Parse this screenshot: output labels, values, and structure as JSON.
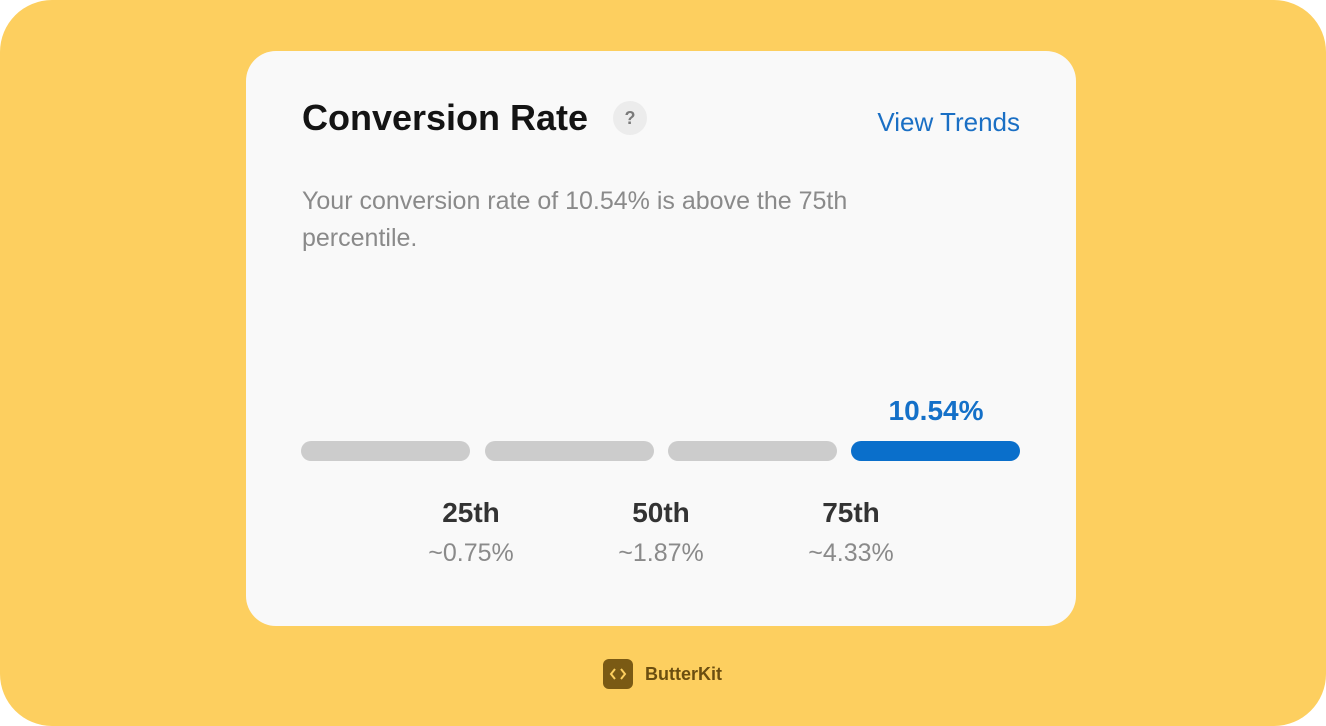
{
  "card": {
    "title": "Conversion Rate",
    "help": "?",
    "link": "View Trends",
    "description": "Your conversion rate of 10.54% is above the 75th percentile.",
    "current_value": "10.54%",
    "percentiles": [
      {
        "label": "25th",
        "value": "~0.75%"
      },
      {
        "label": "50th",
        "value": "~1.87%"
      },
      {
        "label": "75th",
        "value": "~4.33%"
      }
    ]
  },
  "footer": {
    "brand": "ButterKit"
  }
}
